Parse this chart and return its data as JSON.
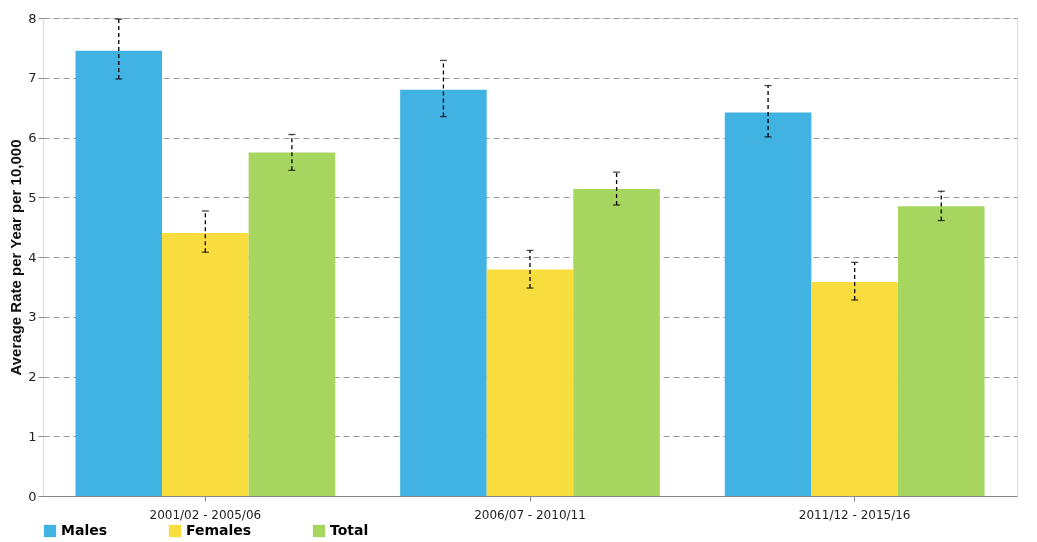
{
  "chart_data": {
    "type": "bar",
    "ylabel": "Average Rate per Year per 10,000",
    "categories": [
      "2001/02 - 2005/06",
      "2006/07 - 2010/11",
      "2011/12 - 2015/16"
    ],
    "series": [
      {
        "name": "Males",
        "color": "#41b3e3",
        "values": [
          7.45,
          6.8,
          6.42
        ],
        "errors": [
          [
            6.98,
            7.98
          ],
          [
            6.35,
            7.29
          ],
          [
            6.01,
            6.87
          ]
        ]
      },
      {
        "name": "Females",
        "color": "#f9dc3e",
        "values": [
          4.4,
          3.79,
          3.58
        ],
        "errors": [
          [
            4.08,
            4.77
          ],
          [
            3.48,
            4.11
          ],
          [
            3.28,
            3.91
          ]
        ]
      },
      {
        "name": "Total",
        "color": "#a6d65f",
        "values": [
          5.75,
          5.14,
          4.85
        ],
        "errors": [
          [
            5.45,
            6.05
          ],
          [
            4.87,
            5.42
          ],
          [
            4.61,
            5.1
          ]
        ]
      }
    ],
    "ylim": [
      0,
      8
    ],
    "yticks": [
      0,
      1,
      2,
      3,
      4,
      5,
      6,
      7,
      8
    ],
    "grid": "y",
    "legend": "bottom"
  }
}
